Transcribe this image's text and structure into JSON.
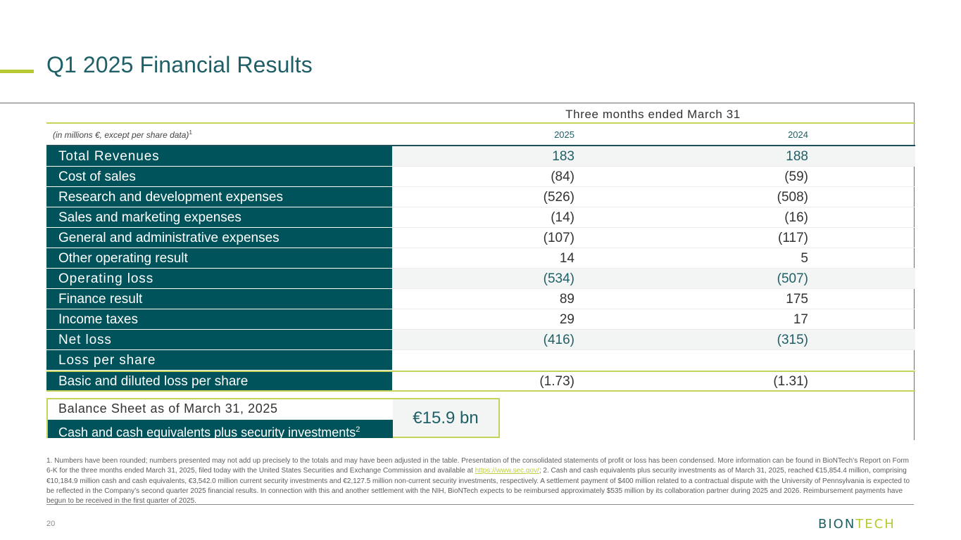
{
  "title": "Q1 2025 Financial Results",
  "table": {
    "period_header": "Three months ended March 31",
    "unit_note": "(in millions €, except per share data)",
    "unit_note_sup": "1",
    "years": [
      "2025",
      "2024"
    ],
    "rows": [
      {
        "label": "Total Revenues",
        "v2025": "183",
        "v2024": "188"
      },
      {
        "label": "Cost of sales",
        "v2025": "(84)",
        "v2024": "(59)"
      },
      {
        "label": "Research and development expenses",
        "v2025": "(526)",
        "v2024": "(508)"
      },
      {
        "label": "Sales and marketing expenses",
        "v2025": "(14)",
        "v2024": "(16)"
      },
      {
        "label": "General and administrative expenses",
        "v2025": "(107)",
        "v2024": "(117)"
      },
      {
        "label": "Other operating result",
        "v2025": "14",
        "v2024": "5"
      },
      {
        "label": "Operating loss",
        "v2025": "(534)",
        "v2024": "(507)"
      },
      {
        "label": "Finance result",
        "v2025": "89",
        "v2024": "175"
      },
      {
        "label": "Income taxes",
        "v2025": "29",
        "v2024": "17"
      },
      {
        "label": "Net loss",
        "v2025": "(416)",
        "v2024": "(315)"
      },
      {
        "label": "Loss per share",
        "v2025": "",
        "v2024": ""
      },
      {
        "label": "Basic and diluted loss per share",
        "v2025": "(1.73)",
        "v2024": "(1.31)"
      }
    ]
  },
  "balance_sheet": {
    "title": "Balance Sheet as of March 31, 2025",
    "label": "Cash and cash equivalents plus security investments",
    "label_sup": "2",
    "value": "€15.9 bn"
  },
  "footnotes": {
    "text_before_link": "1. Numbers have been rounded; numbers presented may not add up precisely to the totals and may have been adjusted in the table. Presentation of the consolidated statements of profit or loss has been condensed. More information can be found in BioNTech’s Report on Form 6-K for the three months ended March 31, 2025, filed today with the United States Securities and Exchange Commission and available at ",
    "link": "https://www.sec.gov/",
    "text_after_link": "; 2. Cash and cash equivalents plus security investments as of March 31, 2025, reached €15,854.4 million, comprising €10,184.9 million cash and cash equivalents, €3,542.0 million current security investments and €2,127.5 million non-current security investments, respectively. A settlement payment of $400 million related to a contractual dispute with the University of Pennsylvania is expected to be reflected in the Company’s second quarter 2025 financial results. In connection with this and another settlement with the NIH, BioNTech expects to be reimbursed approximately $535 million by its collaboration partner during 2025 and 2026. Reimbursement payments have begun to be received in the first quarter of 2025."
  },
  "page_number": "20",
  "logo": {
    "part1": "BION",
    "part2": "TECH",
    "color1": "#1f5f66",
    "color2": "#b7c932"
  }
}
